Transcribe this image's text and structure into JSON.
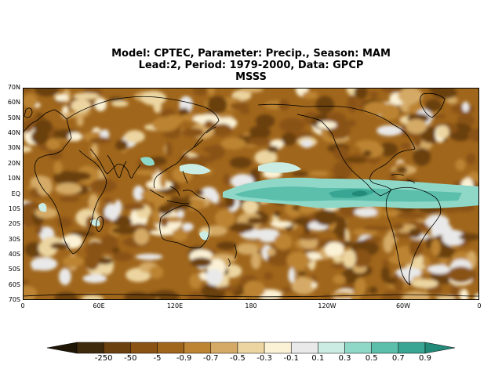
{
  "title": {
    "line1": "Model: CPTEC, Parameter: Precip., Season: MAM",
    "line2": "Lead:2, Period: 1979-2000, Data: GPCP",
    "line3": "MSSS"
  },
  "map": {
    "lat_labels": [
      "70N",
      "60N",
      "50N",
      "40N",
      "30N",
      "20N",
      "10N",
      "EQ",
      "10S",
      "20S",
      "30S",
      "40S",
      "50S",
      "60S",
      "70S"
    ],
    "lon_labels": [
      "0",
      "60E",
      "120E",
      "180",
      "120W",
      "60W",
      "0"
    ]
  },
  "colorbar": {
    "labels": [
      "-250",
      "-50",
      "-5",
      "-0.9",
      "-0.7",
      "-0.5",
      "-0.3",
      "-0.1",
      "0.1",
      "0.3",
      "0.5",
      "0.7",
      "0.9"
    ],
    "colors": [
      "#1f1505",
      "#3e2a0c",
      "#6b410f",
      "#8a5314",
      "#a0661c",
      "#bc8433",
      "#d4aa66",
      "#ecd5a0",
      "#fbf1d4",
      "#e9e9e9",
      "#cbece3",
      "#8fd8c8",
      "#5bbfac",
      "#39a593",
      "#238a7a"
    ]
  }
}
